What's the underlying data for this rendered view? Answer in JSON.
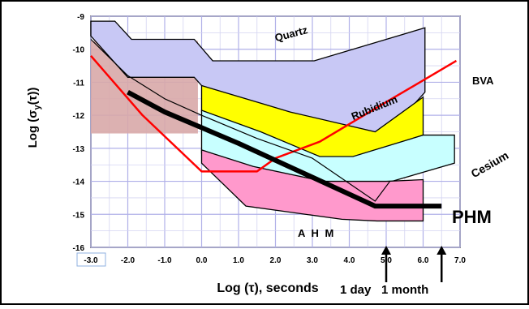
{
  "chart_data": {
    "type": "area",
    "title": "",
    "xlabel": "Log (τ), seconds",
    "ylabel_main": "Log (σ",
    "ylabel_sub": "y",
    "ylabel_tail": "(τ))",
    "xlim": [
      -3.0,
      7.0
    ],
    "ylim": [
      -16,
      -9
    ],
    "x_ticks": [
      {
        "value": -3.0,
        "label": "-3.0"
      },
      {
        "value": -2.0,
        "label": "-2.0"
      },
      {
        "value": -1.0,
        "label": "-1.0"
      },
      {
        "value": 0.0,
        "label": "0.0"
      },
      {
        "value": 1.0,
        "label": "1.0"
      },
      {
        "value": 2.0,
        "label": "2.0"
      },
      {
        "value": 3.0,
        "label": "3.0"
      },
      {
        "value": 4.0,
        "label": "4.0"
      },
      {
        "value": 5.0,
        "label": "5.0"
      },
      {
        "value": 6.0,
        "label": "6.0"
      },
      {
        "value": 7.0,
        "label": "7.0"
      }
    ],
    "y_ticks": [
      {
        "value": -9,
        "label": "-9"
      },
      {
        "value": -10,
        "label": "-10"
      },
      {
        "value": -11,
        "label": "-11"
      },
      {
        "value": -12,
        "label": "-12"
      },
      {
        "value": -13,
        "label": "-13"
      },
      {
        "value": -14,
        "label": "-14"
      },
      {
        "value": -15,
        "label": "-15"
      },
      {
        "value": -16,
        "label": "-16"
      }
    ],
    "grid": true,
    "regions": [
      {
        "name": "Quartz",
        "color": "#c8c8f5",
        "points": [
          [
            -3.0,
            -9.15
          ],
          [
            -2.35,
            -9.15
          ],
          [
            -1.9,
            -9.7
          ],
          [
            -0.2,
            -9.7
          ],
          [
            0.3,
            -10.35
          ],
          [
            3.05,
            -10.35
          ],
          [
            6.05,
            -9.35
          ],
          [
            6.05,
            -11.3
          ],
          [
            5.0,
            -12.6
          ],
          [
            2.0,
            -12.6
          ],
          [
            0.0,
            -11.1
          ],
          [
            -0.2,
            -10.85
          ],
          [
            -2.0,
            -10.85
          ],
          [
            -3.0,
            -9.6
          ]
        ]
      },
      {
        "name": "Rubidium",
        "color": "#ffff00",
        "points": [
          [
            0.0,
            -11.1
          ],
          [
            2.4,
            -11.9
          ],
          [
            4.7,
            -12.5
          ],
          [
            6.0,
            -11.45
          ],
          [
            6.0,
            -12.6
          ],
          [
            4.1,
            -13.3
          ],
          [
            3.2,
            -13.3
          ],
          [
            1.6,
            -12.55
          ],
          [
            0.0,
            -11.9
          ]
        ]
      },
      {
        "name": "Cesium",
        "color": "#c8ffff",
        "points": [
          [
            0.0,
            -11.85
          ],
          [
            1.6,
            -12.5
          ],
          [
            3.2,
            -13.25
          ],
          [
            4.1,
            -13.25
          ],
          [
            6.0,
            -12.6
          ],
          [
            6.85,
            -12.6
          ],
          [
            6.85,
            -13.45
          ],
          [
            5.0,
            -14.05
          ],
          [
            3.3,
            -14.05
          ],
          [
            1.4,
            -13.6
          ],
          [
            0.0,
            -13.15
          ]
        ]
      },
      {
        "name": "AHM",
        "color": "#ff99cc",
        "points": [
          [
            0.0,
            -13.05
          ],
          [
            1.4,
            -13.55
          ],
          [
            3.3,
            -14.0
          ],
          [
            5.0,
            -14.0
          ],
          [
            6.0,
            -13.95
          ],
          [
            6.0,
            -15.2
          ],
          [
            4.75,
            -15.2
          ],
          [
            3.8,
            -15.15
          ],
          [
            1.2,
            -14.75
          ],
          [
            0.0,
            -13.45
          ]
        ]
      }
    ],
    "shaded_box": {
      "x": [
        -3.0,
        -0.1
      ],
      "y": [
        -12.55,
        -9.75
      ],
      "color": "#d8a8a8"
    },
    "lines": [
      {
        "name": "BVA",
        "color": "#ff0000",
        "width": 2.5,
        "points": [
          [
            -3.0,
            -10.2
          ],
          [
            -1.6,
            -12.0
          ],
          [
            0.0,
            -13.7
          ],
          [
            1.5,
            -13.7
          ],
          [
            2.0,
            -13.3
          ],
          [
            3.2,
            -12.8
          ],
          [
            5.0,
            -11.6
          ],
          [
            6.9,
            -10.35
          ]
        ]
      },
      {
        "name": "PHM",
        "color": "#000000",
        "width": 6,
        "points": [
          [
            -2.0,
            -11.3
          ],
          [
            -1.0,
            -11.9
          ],
          [
            1.0,
            -12.85
          ],
          [
            4.7,
            -14.75
          ],
          [
            6.5,
            -14.75
          ]
        ]
      },
      {
        "name": "",
        "color": "#000000",
        "width": 1.2,
        "points": [
          [
            -3.0,
            -9.7
          ],
          [
            -2.0,
            -10.8
          ],
          [
            -1.0,
            -11.5
          ],
          [
            0.0,
            -12.0
          ],
          [
            1.5,
            -12.7
          ],
          [
            3.0,
            -13.3
          ],
          [
            4.7,
            -14.6
          ],
          [
            5.1,
            -14.0
          ]
        ]
      }
    ],
    "marks": [
      {
        "x": 5.0,
        "label": "1 day"
      },
      {
        "x": 6.5,
        "label": "1 month"
      }
    ],
    "labels": {
      "quartz": "Quartz",
      "rubidium": "Rubidium",
      "bva": "BVA",
      "cesium": "Cesium",
      "phm": "PHM",
      "ahm": "A H M",
      "one_day": "1 day",
      "one_month": "1 month"
    }
  }
}
